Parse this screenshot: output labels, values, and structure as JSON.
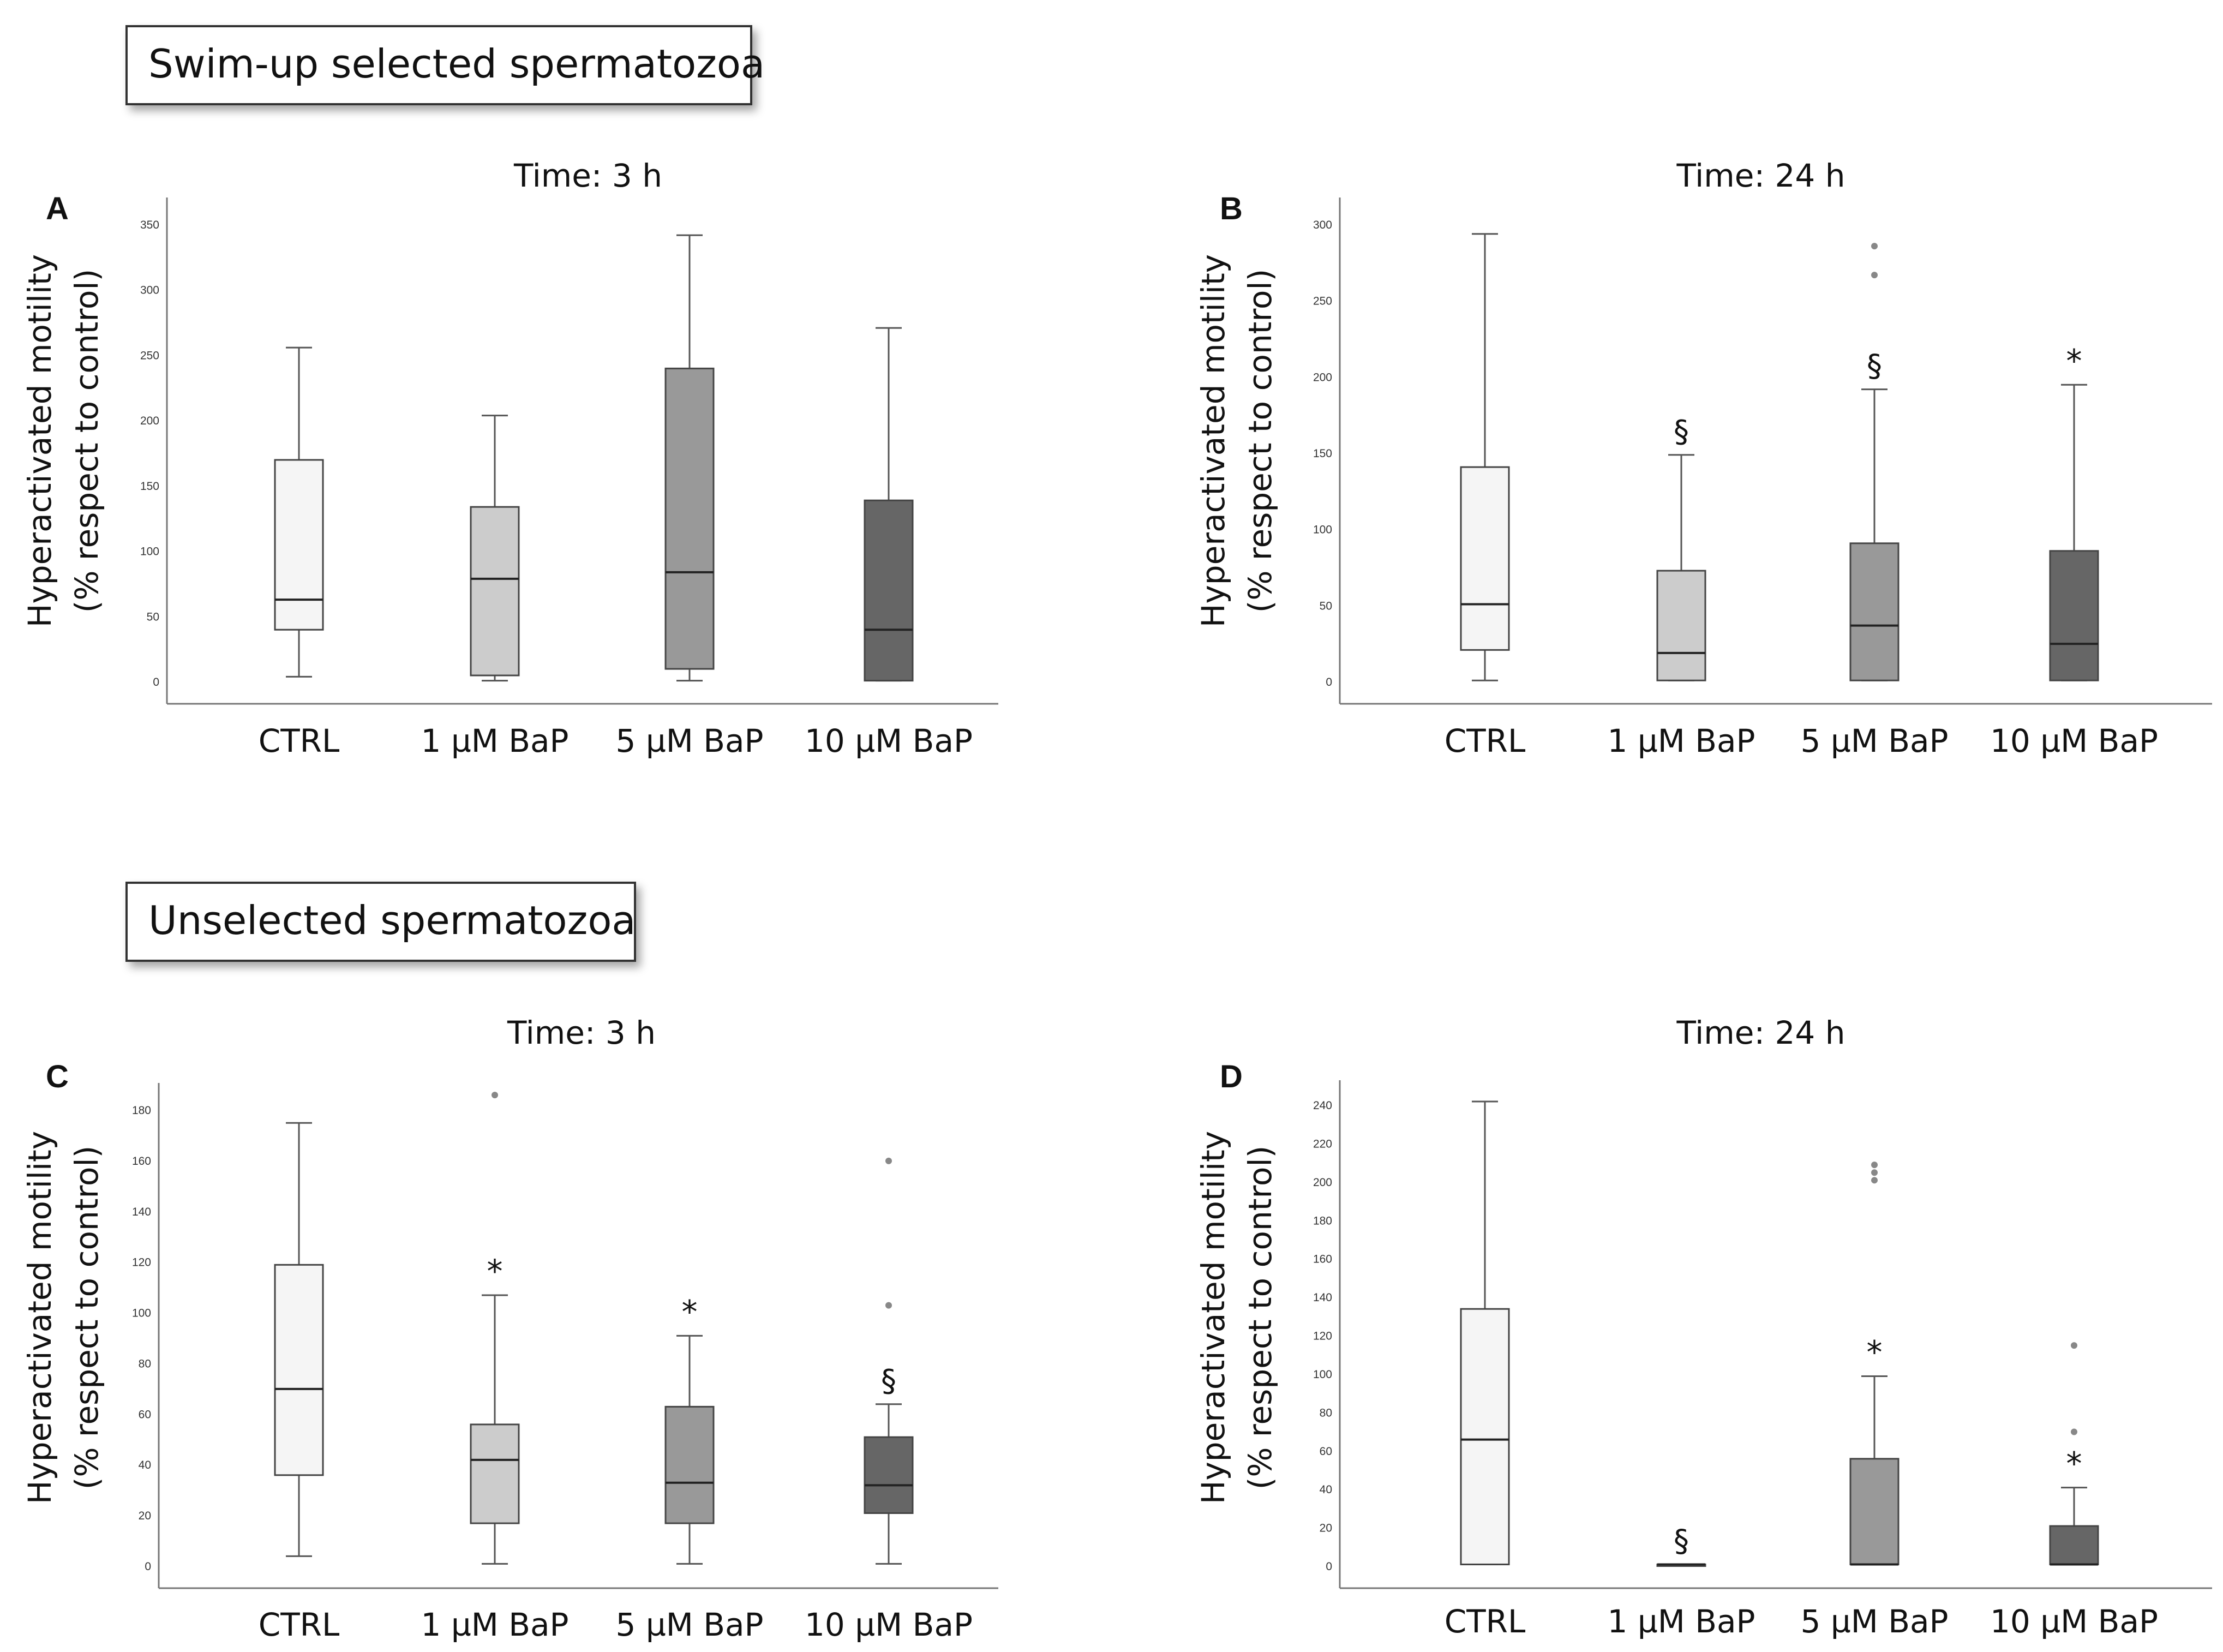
{
  "sections": [
    {
      "label": "Swim-up selected spermatozoa"
    },
    {
      "label": "Unselected spermatozoa"
    }
  ],
  "colors": {
    "CTRL": "#f5f5f5",
    "1 µM BaP": "#cccccc",
    "5 µM BaP": "#999999",
    "10 µM BaP": "#666666",
    "outlier": "#888888",
    "line": "#555555"
  },
  "chart_data": [
    {
      "panel": "A",
      "type": "box",
      "title": "Time: 3 h",
      "ylabel_line1": "Hyperactivated motility",
      "ylabel_line2": "(% respect to control)",
      "ylim": [
        0,
        350
      ],
      "yticks": [
        0,
        50,
        100,
        150,
        200,
        250,
        300,
        350
      ],
      "categories": [
        "CTRL",
        "1 µM BaP",
        "5 µM BaP",
        "10 µM BaP"
      ],
      "boxes": [
        {
          "min": 4,
          "q1": 40,
          "median": 63,
          "q3": 170,
          "max": 256,
          "marker": "",
          "outliers": []
        },
        {
          "min": 1,
          "q1": 5,
          "median": 79,
          "q3": 134,
          "max": 204,
          "marker": "",
          "outliers": []
        },
        {
          "min": 1,
          "q1": 10,
          "median": 84,
          "q3": 240,
          "max": 342,
          "marker": "",
          "outliers": []
        },
        {
          "min": 1,
          "q1": 1,
          "median": 40,
          "q3": 139,
          "max": 271,
          "marker": "",
          "outliers": []
        }
      ]
    },
    {
      "panel": "B",
      "type": "box",
      "title": "Time: 24 h",
      "ylabel_line1": "Hyperactivated motility",
      "ylabel_line2": "(% respect to control)",
      "ylim": [
        0,
        300
      ],
      "yticks": [
        0,
        50,
        100,
        150,
        200,
        250,
        300
      ],
      "categories": [
        "CTRL",
        "1 µM BaP",
        "5 µM BaP",
        "10 µM BaP"
      ],
      "boxes": [
        {
          "min": 1,
          "q1": 21,
          "median": 51,
          "q3": 141,
          "max": 294,
          "marker": "",
          "outliers": []
        },
        {
          "min": 1,
          "q1": 1,
          "median": 19,
          "q3": 73,
          "max": 149,
          "marker": "§",
          "outliers": []
        },
        {
          "min": 1,
          "q1": 1,
          "median": 37,
          "q3": 91,
          "max": 192,
          "marker": "§",
          "outliers": [
            267,
            286
          ]
        },
        {
          "min": 1,
          "q1": 1,
          "median": 25,
          "q3": 86,
          "max": 195,
          "marker": "*",
          "outliers": []
        }
      ]
    },
    {
      "panel": "C",
      "type": "box",
      "title": "Time: 3 h",
      "ylabel_line1": "Hyperactivated motility",
      "ylabel_line2": "(% respect to control)",
      "ylim": [
        0,
        180
      ],
      "yticks": [
        0,
        20,
        40,
        60,
        80,
        100,
        120,
        140,
        160,
        180
      ],
      "categories": [
        "CTRL",
        "1 µM BaP",
        "5 µM BaP",
        "10 µM BaP"
      ],
      "boxes": [
        {
          "min": 4,
          "q1": 36,
          "median": 70,
          "q3": 119,
          "max": 175,
          "marker": "",
          "outliers": []
        },
        {
          "min": 1,
          "q1": 17,
          "median": 42,
          "q3": 56,
          "max": 107,
          "marker": "*",
          "outliers": [
            186
          ]
        },
        {
          "min": 1,
          "q1": 17,
          "median": 33,
          "q3": 63,
          "max": 91,
          "marker": "*",
          "outliers": []
        },
        {
          "min": 1,
          "q1": 21,
          "median": 32,
          "q3": 51,
          "max": 64,
          "marker": "§",
          "outliers": [
            103,
            160
          ]
        }
      ]
    },
    {
      "panel": "D",
      "type": "box",
      "title": "Time: 24 h",
      "ylabel_line1": "Hyperactivated motility",
      "ylabel_line2": "(% respect to control)",
      "ylim": [
        0,
        240
      ],
      "yticks": [
        0,
        20,
        40,
        60,
        80,
        100,
        120,
        140,
        160,
        180,
        200,
        220,
        240
      ],
      "categories": [
        "CTRL",
        "1 µM BaP",
        "5 µM BaP",
        "10 µM BaP"
      ],
      "boxes": [
        {
          "min": 1,
          "q1": 1,
          "median": 66,
          "q3": 134,
          "max": 242,
          "marker": "",
          "outliers": []
        },
        {
          "min": 1,
          "q1": 1,
          "median": 1,
          "q3": 1,
          "max": 1,
          "marker": "§",
          "outliers": []
        },
        {
          "min": 1,
          "q1": 1,
          "median": 1,
          "q3": 56,
          "max": 99,
          "marker": "*",
          "outliers": [
            201,
            205,
            209
          ]
        },
        {
          "min": 1,
          "q1": 1,
          "median": 1,
          "q3": 21,
          "max": 41,
          "marker": "*",
          "outliers": [
            70,
            115
          ]
        }
      ]
    }
  ]
}
